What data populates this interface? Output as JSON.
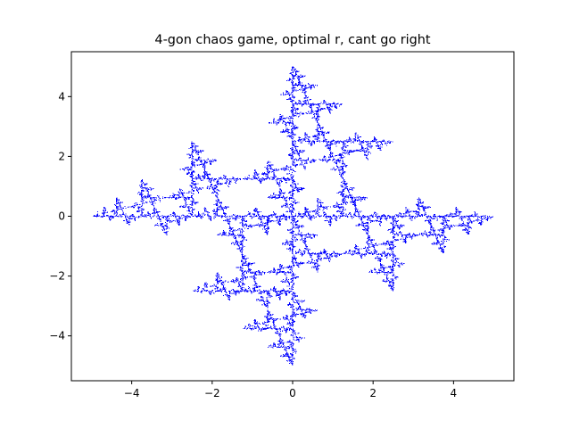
{
  "chart_data": {
    "type": "scatter",
    "title": "4-gon chaos game, optimal r, cant go right",
    "xlabel": "",
    "ylabel": "",
    "xlim": [
      -5.5,
      5.5
    ],
    "ylim": [
      -5.5,
      5.5
    ],
    "xticks": [
      -4,
      -2,
      0,
      2,
      4
    ],
    "yticks": [
      -4,
      -2,
      0,
      2,
      4
    ],
    "xtick_labels": [
      "−4",
      "−2",
      "0",
      "2",
      "4"
    ],
    "ytick_labels": [
      "−4",
      "−2",
      "0",
      "2",
      "4"
    ],
    "grid": false,
    "legend": "none",
    "colors": {
      "points": "#0000ff",
      "axes": "#000000",
      "background": "#ffffff"
    },
    "game": {
      "vertices": [
        [
          5,
          0
        ],
        [
          0,
          5
        ],
        [
          -5,
          0
        ],
        [
          0,
          -5
        ]
      ],
      "ratio": 0.5,
      "rule": "chosen vertex may not be the one immediately right (clockwise) of the previous vertex",
      "iterations": 60000
    }
  }
}
